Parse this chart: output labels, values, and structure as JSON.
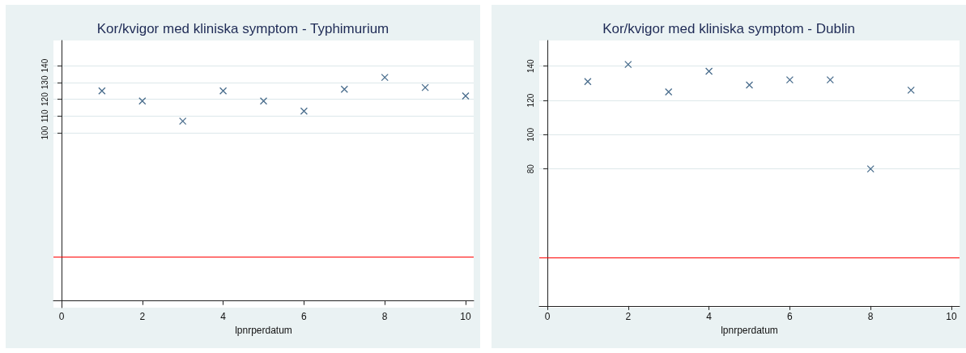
{
  "chart_data": [
    {
      "type": "scatter",
      "title": "Kor/kvigor med kliniska symptom - Typhimurium",
      "xlabel": "lpnrperdatum",
      "x": [
        1,
        2,
        3,
        4,
        5,
        6,
        7,
        8,
        9,
        10
      ],
      "series": [
        {
          "color": "#1a476f",
          "values": [
            125,
            119,
            107,
            125,
            119,
            113,
            126,
            133,
            127,
            122
          ]
        }
      ],
      "xlim": [
        -0.2,
        10.2
      ],
      "xticks": [
        0,
        2,
        4,
        6,
        8,
        10
      ],
      "ylim": [
        -4,
        155
      ],
      "yticks": [
        100,
        110,
        120,
        130,
        140
      ],
      "ref_lines": [
        {
          "axis": "y",
          "value": 26,
          "color": "#ff0000"
        }
      ],
      "marker": "cross",
      "grid": "y"
    },
    {
      "type": "scatter",
      "title": "Kor/kvigor med kliniska symptom - Dublin",
      "xlabel": "lpnrperdatum",
      "x": [
        1,
        2,
        3,
        4,
        5,
        6,
        7,
        8,
        9
      ],
      "series": [
        {
          "color": "#1a476f",
          "values": [
            131,
            141,
            125,
            137,
            129,
            132,
            132,
            80,
            126
          ]
        }
      ],
      "xlim": [
        -0.2,
        10.2
      ],
      "xticks": [
        0,
        2,
        4,
        6,
        8,
        10
      ],
      "ylim": [
        -1,
        155
      ],
      "yticks": [
        80,
        100,
        120,
        140
      ],
      "ref_lines": [
        {
          "axis": "y",
          "value": 28,
          "color": "#ff0000"
        }
      ],
      "marker": "cross",
      "grid": "y"
    }
  ]
}
